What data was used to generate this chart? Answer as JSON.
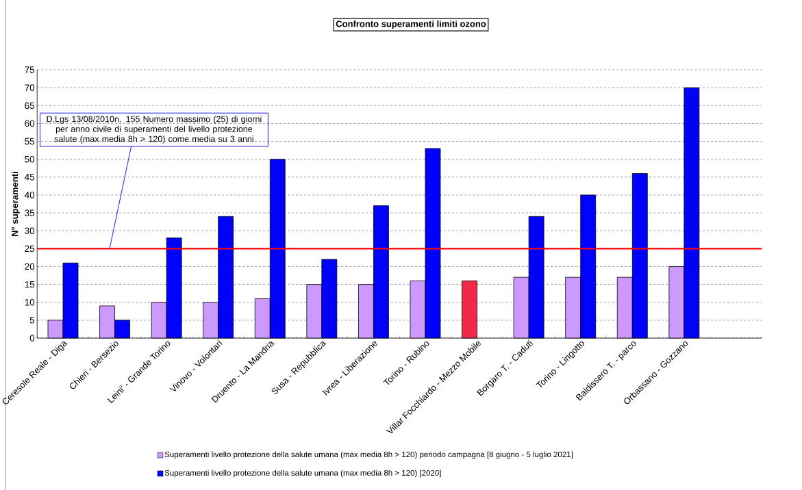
{
  "chart_data": {
    "type": "bar",
    "title": "Confronto superamenti limiti ozono",
    "ylabel": "N° superamenti",
    "categories": [
      "Ceresole Reale - Diga",
      "Chieri - Bersezio",
      "Leini' - Grande Torino",
      "Vinovo - Volontari",
      "Druento - La Mandria",
      "Susa - Repubblica",
      "Ivrea - Liberazione",
      "Torino - Rubino",
      "Villar Focchiardo - Mezzo Mobile",
      "Borgaro T. - Caduti",
      "Torino - Lingotto",
      "Baldissero T. - parco",
      "Orbassano - Gozzano",
      null
    ],
    "series": [
      {
        "name": "Superamenti livello protezione della salute umana (max media 8h > 120) periodo campagna [8 giugno - 5 luglio 2021]",
        "color": "#cc99ff",
        "colors": [
          "#cc99ff",
          "#cc99ff",
          "#cc99ff",
          "#cc99ff",
          "#cc99ff",
          "#cc99ff",
          "#cc99ff",
          "#cc99ff",
          "#f0284a",
          "#cc99ff",
          "#cc99ff",
          "#cc99ff",
          "#cc99ff",
          "#cc99ff"
        ],
        "values": [
          5,
          9,
          10,
          10,
          11,
          15,
          15,
          16,
          16,
          17,
          17,
          17,
          20,
          null
        ]
      },
      {
        "name": "Superamenti livello protezione della salute umana (max media 8h > 120) [2020]",
        "color": "#0000ff",
        "values": [
          21,
          5,
          28,
          34,
          50,
          22,
          37,
          53,
          null,
          34,
          40,
          46,
          70,
          null
        ]
      }
    ],
    "ylim": [
      0,
      75
    ],
    "yticks": [
      0,
      5,
      10,
      15,
      20,
      25,
      30,
      35,
      40,
      45,
      50,
      55,
      60,
      65,
      70,
      75
    ],
    "grid": "y",
    "legend": "bottom",
    "ref_lines": [
      {
        "axis": "y",
        "value": 25,
        "color": "#ff0000",
        "label": "D.Lgs 13/08/2010n. 155 Numero massimo (25) di giorni per anno civile di superamenti del livello protezione salute (max media 8h > 120) come media su 3 anni"
      }
    ]
  }
}
